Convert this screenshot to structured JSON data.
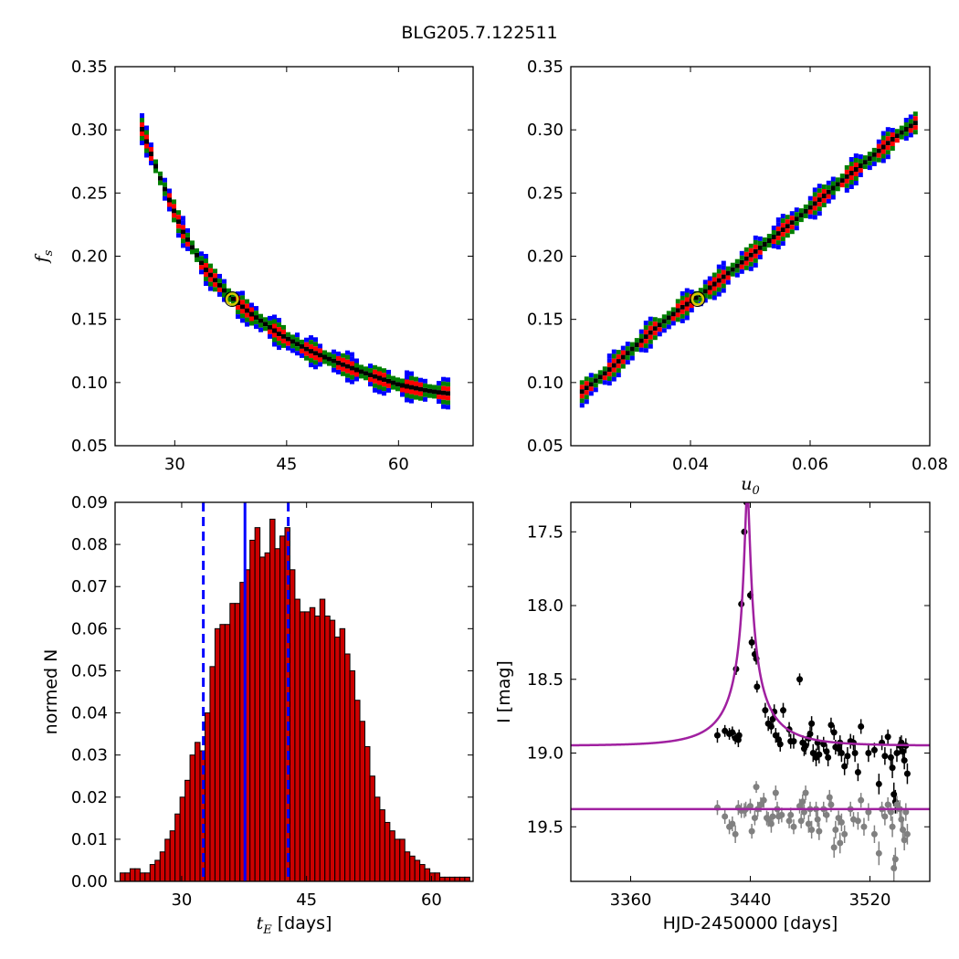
{
  "title": "BLG205.7.122511",
  "chart_data": [
    {
      "id": "fs_vs_tE",
      "type": "heatmap",
      "title": "",
      "xlabel": "",
      "ylabel": "f",
      "ylabel_sub": "s",
      "xlim": [
        22,
        70
      ],
      "ylim": [
        0.05,
        0.35
      ],
      "xticks": [
        30,
        45,
        60
      ],
      "yticks": [
        0.05,
        0.1,
        0.15,
        0.2,
        0.25,
        0.3,
        0.35
      ],
      "ytick_labels": [
        "0.05",
        "0.10",
        "0.15",
        "0.20",
        "0.25",
        "0.30",
        "0.35"
      ],
      "best_fit": {
        "x": 37.7,
        "y": 0.166
      },
      "band_ridge": [
        [
          25.3,
          0.305
        ],
        [
          28.0,
          0.262
        ],
        [
          31.0,
          0.22
        ],
        [
          34.0,
          0.19
        ],
        [
          37.0,
          0.17
        ],
        [
          40.0,
          0.155
        ],
        [
          44.0,
          0.138
        ],
        [
          48.0,
          0.125
        ],
        [
          52.0,
          0.115
        ],
        [
          56.0,
          0.106
        ],
        [
          60.0,
          0.098
        ],
        [
          64.0,
          0.093
        ],
        [
          66.5,
          0.091
        ]
      ],
      "confidence_colors": {
        "1sigma": "#000000",
        "2sigma": "#ff0000",
        "3sigma": "#008000",
        "4sigma": "#0000ff"
      }
    },
    {
      "id": "fs_vs_u0",
      "type": "heatmap",
      "title": "",
      "xlabel": "u",
      "xlabel_sub": "0",
      "ylabel": "",
      "xlim": [
        0.02,
        0.08
      ],
      "ylim": [
        0.05,
        0.35
      ],
      "xticks": [
        0.04,
        0.06,
        0.08
      ],
      "xtick_labels": [
        "0.04",
        "0.06",
        "0.08"
      ],
      "yticks": [
        0.05,
        0.1,
        0.15,
        0.2,
        0.25,
        0.3,
        0.35
      ],
      "ytick_labels": [
        "0.05",
        "0.10",
        "0.15",
        "0.20",
        "0.25",
        "0.30",
        "0.35"
      ],
      "best_fit": {
        "x": 0.0412,
        "y": 0.166
      },
      "band_ridge": [
        [
          0.0215,
          0.091
        ],
        [
          0.026,
          0.108
        ],
        [
          0.03,
          0.125
        ],
        [
          0.034,
          0.142
        ],
        [
          0.038,
          0.157
        ],
        [
          0.042,
          0.17
        ],
        [
          0.046,
          0.185
        ],
        [
          0.05,
          0.2
        ],
        [
          0.054,
          0.215
        ],
        [
          0.058,
          0.23
        ],
        [
          0.062,
          0.246
        ],
        [
          0.066,
          0.262
        ],
        [
          0.07,
          0.277
        ],
        [
          0.074,
          0.293
        ],
        [
          0.0775,
          0.305
        ]
      ],
      "confidence_colors": {
        "1sigma": "#000000",
        "2sigma": "#ff0000",
        "3sigma": "#008000",
        "4sigma": "#0000ff"
      }
    },
    {
      "id": "tE_histogram",
      "type": "bar",
      "title": "",
      "xlabel": "t",
      "xlabel_sub": "E",
      "xlabel_suffix": " [days]",
      "ylabel": "normed N",
      "xlim": [
        22,
        65
      ],
      "ylim": [
        0,
        0.09
      ],
      "xticks": [
        30,
        45,
        60
      ],
      "yticks": [
        0.0,
        0.01,
        0.02,
        0.03,
        0.04,
        0.05,
        0.06,
        0.07,
        0.08,
        0.09
      ],
      "ytick_labels": [
        "0.00",
        "0.01",
        "0.02",
        "0.03",
        "0.04",
        "0.05",
        "0.06",
        "0.07",
        "0.08",
        "0.09"
      ],
      "bin_start": 22.6,
      "bin_width": 0.6,
      "values": [
        0.002,
        0.002,
        0.003,
        0.003,
        0.002,
        0.002,
        0.004,
        0.005,
        0.007,
        0.01,
        0.012,
        0.016,
        0.02,
        0.024,
        0.03,
        0.033,
        0.031,
        0.04,
        0.051,
        0.06,
        0.061,
        0.061,
        0.066,
        0.066,
        0.071,
        0.074,
        0.081,
        0.084,
        0.077,
        0.078,
        0.086,
        0.079,
        0.082,
        0.084,
        0.074,
        0.067,
        0.064,
        0.064,
        0.065,
        0.063,
        0.067,
        0.063,
        0.062,
        0.058,
        0.06,
        0.054,
        0.05,
        0.043,
        0.038,
        0.032,
        0.025,
        0.02,
        0.017,
        0.014,
        0.012,
        0.01,
        0.01,
        0.007,
        0.006,
        0.005,
        0.004,
        0.003,
        0.002,
        0.002,
        0.001,
        0.001,
        0.001,
        0.001,
        0.001,
        0.001,
        0.001,
        0.001
      ],
      "bar_color": "#cc0000",
      "median_line": 37.6,
      "interval_lines": [
        32.6,
        42.8
      ]
    },
    {
      "id": "lightcurve",
      "type": "scatter",
      "title": "",
      "xlabel": "HJD-2450000 [days]",
      "ylabel": "I [mag]",
      "xlim": [
        3320,
        3560
      ],
      "ylim": [
        19.87,
        17.3
      ],
      "xticks": [
        3360,
        3440,
        3520
      ],
      "yticks": [
        17.5,
        18.0,
        18.5,
        19.0,
        19.5
      ],
      "ytick_labels": [
        "17.5",
        "18.0",
        "18.5",
        "19.0",
        "19.5"
      ],
      "model": {
        "t0": 3438,
        "tE": 37.7,
        "u0": 0.0412,
        "fs": 0.166,
        "baseline": 18.95,
        "flat": 19.38,
        "color": "#a020a0"
      },
      "series": [
        {
          "color": "#000000",
          "points": [
            [
              3418,
              18.88,
              0.05
            ],
            [
              3423,
              18.85,
              0.04
            ],
            [
              3426,
              18.87,
              0.04
            ],
            [
              3428,
              18.86,
              0.04
            ],
            [
              3430,
              18.9,
              0.04
            ],
            [
              3432,
              18.91,
              0.05
            ],
            [
              3432.5,
              18.88,
              0.04
            ],
            [
              3430.5,
              18.43,
              0.04
            ],
            [
              3434,
              17.99,
              0.03
            ],
            [
              3436,
              17.5,
              0.02
            ],
            [
              3437.5,
              17.3,
              0.02
            ],
            [
              3440,
              17.93,
              0.03
            ],
            [
              3441,
              18.25,
              0.04
            ],
            [
              3443,
              18.33,
              0.04
            ],
            [
              3444,
              18.36,
              0.04
            ],
            [
              3444.5,
              18.55,
              0.04
            ],
            [
              3450,
              18.71,
              0.05
            ],
            [
              3452,
              18.8,
              0.05
            ],
            [
              3454,
              18.82,
              0.05
            ],
            [
              3455,
              18.77,
              0.05
            ],
            [
              3457,
              18.88,
              0.05
            ],
            [
              3459,
              18.91,
              0.05
            ],
            [
              3460,
              18.94,
              0.05
            ],
            [
              3456,
              18.72,
              0.05
            ],
            [
              3462,
              18.71,
              0.05
            ],
            [
              3466,
              18.84,
              0.05
            ],
            [
              3467,
              18.92,
              0.05
            ],
            [
              3469,
              18.92,
              0.05
            ],
            [
              3473,
              18.5,
              0.04
            ],
            [
              3475,
              18.93,
              0.05
            ],
            [
              3476,
              18.97,
              0.05
            ],
            [
              3477,
              18.95,
              0.06
            ],
            [
              3479,
              18.9,
              0.05
            ],
            [
              3481,
              18.8,
              0.05
            ],
            [
              3480,
              18.87,
              0.05
            ],
            [
              3482,
              19.0,
              0.06
            ],
            [
              3484,
              19.03,
              0.06
            ],
            [
              3485,
              18.93,
              0.05
            ],
            [
              3486,
              19.01,
              0.06
            ],
            [
              3489,
              18.94,
              0.05
            ],
            [
              3491,
              18.99,
              0.05
            ],
            [
              3492,
              19.03,
              0.06
            ],
            [
              3494,
              18.81,
              0.05
            ],
            [
              3496,
              18.86,
              0.05
            ],
            [
              3497,
              18.96,
              0.05
            ],
            [
              3499,
              18.97,
              0.05
            ],
            [
              3500,
              18.93,
              0.05
            ],
            [
              3501,
              19.0,
              0.06
            ],
            [
              3503,
              19.09,
              0.06
            ],
            [
              3505,
              19.02,
              0.06
            ],
            [
              3507,
              18.92,
              0.05
            ],
            [
              3509,
              18.93,
              0.05
            ],
            [
              3510,
              19.0,
              0.06
            ],
            [
              3512,
              19.13,
              0.06
            ],
            [
              3514,
              18.82,
              0.05
            ],
            [
              3519,
              19.0,
              0.06
            ],
            [
              3523,
              18.98,
              0.05
            ],
            [
              3526,
              19.21,
              0.07
            ],
            [
              3528,
              18.93,
              0.05
            ],
            [
              3530,
              19.02,
              0.06
            ],
            [
              3532,
              18.89,
              0.05
            ],
            [
              3534,
              19.03,
              0.06
            ],
            [
              3535,
              19.1,
              0.07
            ],
            [
              3536,
              19.28,
              0.08
            ],
            [
              3537,
              19.33,
              0.08
            ],
            [
              3538,
              19.0,
              0.06
            ],
            [
              3540,
              18.95,
              0.06
            ],
            [
              3541,
              18.93,
              0.05
            ],
            [
              3542,
              18.99,
              0.06
            ],
            [
              3543,
              19.05,
              0.06
            ],
            [
              3544,
              18.95,
              0.05
            ],
            [
              3545,
              19.14,
              0.07
            ]
          ]
        },
        {
          "color": "#808080",
          "points": [
            [
              3418,
              19.37,
              0.05
            ],
            [
              3423,
              19.43,
              0.05
            ],
            [
              3426,
              19.5,
              0.05
            ],
            [
              3428,
              19.48,
              0.05
            ],
            [
              3430,
              19.55,
              0.06
            ],
            [
              3432,
              19.37,
              0.05
            ],
            [
              3434,
              19.39,
              0.05
            ],
            [
              3436,
              19.39,
              0.05
            ],
            [
              3437,
              19.38,
              0.05
            ],
            [
              3440,
              19.36,
              0.05
            ],
            [
              3441,
              19.53,
              0.05
            ],
            [
              3443,
              19.44,
              0.05
            ],
            [
              3444,
              19.23,
              0.04
            ],
            [
              3445,
              19.38,
              0.05
            ],
            [
              3447,
              19.35,
              0.05
            ],
            [
              3449,
              19.32,
              0.05
            ],
            [
              3451,
              19.44,
              0.05
            ],
            [
              3452,
              19.45,
              0.05
            ],
            [
              3454,
              19.48,
              0.06
            ],
            [
              3455,
              19.43,
              0.05
            ],
            [
              3457,
              19.27,
              0.05
            ],
            [
              3458,
              19.38,
              0.05
            ],
            [
              3459,
              19.43,
              0.05
            ],
            [
              3461,
              19.42,
              0.05
            ],
            [
              3466,
              19.46,
              0.05
            ],
            [
              3467,
              19.42,
              0.05
            ],
            [
              3469,
              19.5,
              0.05
            ],
            [
              3473,
              19.36,
              0.05
            ],
            [
              3474,
              19.46,
              0.05
            ],
            [
              3475,
              19.33,
              0.05
            ],
            [
              3476,
              19.4,
              0.05
            ],
            [
              3477,
              19.27,
              0.05
            ],
            [
              3479,
              19.48,
              0.06
            ],
            [
              3480,
              19.38,
              0.05
            ],
            [
              3481,
              19.52,
              0.06
            ],
            [
              3484,
              19.38,
              0.05
            ],
            [
              3485,
              19.45,
              0.05
            ],
            [
              3486,
              19.53,
              0.06
            ],
            [
              3489,
              19.38,
              0.05
            ],
            [
              3491,
              19.42,
              0.05
            ],
            [
              3493,
              19.3,
              0.05
            ],
            [
              3494,
              19.35,
              0.05
            ],
            [
              3496,
              19.64,
              0.07
            ],
            [
              3497,
              19.52,
              0.06
            ],
            [
              3499,
              19.44,
              0.05
            ],
            [
              3500,
              19.61,
              0.07
            ],
            [
              3501,
              19.47,
              0.06
            ],
            [
              3503,
              19.55,
              0.06
            ],
            [
              3507,
              19.38,
              0.05
            ],
            [
              3509,
              19.45,
              0.05
            ],
            [
              3512,
              19.46,
              0.06
            ],
            [
              3514,
              19.32,
              0.05
            ],
            [
              3516,
              19.5,
              0.06
            ],
            [
              3519,
              19.4,
              0.06
            ],
            [
              3523,
              19.55,
              0.06
            ],
            [
              3526,
              19.68,
              0.08
            ],
            [
              3528,
              19.38,
              0.05
            ],
            [
              3530,
              19.43,
              0.06
            ],
            [
              3532,
              19.35,
              0.05
            ],
            [
              3534,
              19.4,
              0.06
            ],
            [
              3535,
              19.5,
              0.07
            ],
            [
              3536,
              19.78,
              0.09
            ],
            [
              3537,
              19.72,
              0.08
            ],
            [
              3538,
              19.35,
              0.06
            ],
            [
              3540,
              19.38,
              0.06
            ],
            [
              3541,
              19.45,
              0.06
            ],
            [
              3542,
              19.52,
              0.06
            ],
            [
              3543,
              19.59,
              0.07
            ],
            [
              3544,
              19.4,
              0.06
            ],
            [
              3545,
              19.55,
              0.07
            ]
          ]
        }
      ]
    }
  ]
}
